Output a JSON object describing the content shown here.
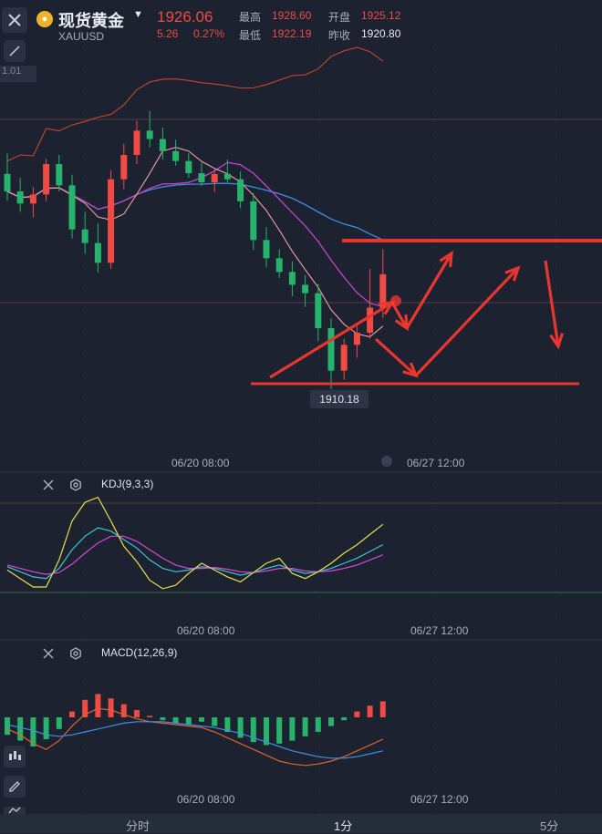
{
  "header": {
    "name": "现货黄金",
    "symbol": "XAUUSD",
    "price": "1926.06",
    "change": "5.26",
    "change_pct": "0.27%",
    "stats": [
      {
        "label": "最高",
        "value": "1928.60"
      },
      {
        "label": "开盘",
        "value": "1925.12"
      },
      {
        "label": "最低",
        "value": "1922.19"
      },
      {
        "label": "昨收",
        "value": "1920.80"
      }
    ]
  },
  "main_chart": {
    "corner_label": "1.01",
    "low_label": "1910.18",
    "x_ticks": [
      "06/20 08:00",
      "06/27 12:00"
    ]
  },
  "kdj": {
    "title": "KDJ(9,3,3)",
    "x_ticks": [
      "06/20 08:00",
      "06/27 12:00"
    ]
  },
  "macd": {
    "title": "MACD(12,26,9)",
    "x_ticks": [
      "06/20 08:00",
      "06/27 12:00"
    ]
  },
  "tabs": [
    "分时",
    "1分",
    "5分"
  ],
  "colors": {
    "up": "#f04a44",
    "down": "#26b36b",
    "ma_fast": "#f1a0a0",
    "ma_mid": "#c842cf",
    "ma_slow": "#3f8fe6",
    "boll_upper": "#c8452e",
    "k": "#3cc6d8",
    "d": "#d64ad8",
    "j": "#e8e04a"
  },
  "chart_data": [
    {
      "type": "candlestick",
      "title": "",
      "price_range": [
        1905,
        1950
      ],
      "annotation_low": 1910.18,
      "candles": [
        {
          "o": 1938.5,
          "h": 1941.2,
          "l": 1935.0,
          "c": 1936.2
        },
        {
          "o": 1936.2,
          "h": 1938.0,
          "l": 1933.5,
          "c": 1934.6
        },
        {
          "o": 1934.6,
          "h": 1936.8,
          "l": 1932.8,
          "c": 1935.8
        },
        {
          "o": 1935.8,
          "h": 1940.5,
          "l": 1934.9,
          "c": 1939.8
        },
        {
          "o": 1939.8,
          "h": 1941.0,
          "l": 1936.2,
          "c": 1937.0
        },
        {
          "o": 1937.0,
          "h": 1938.4,
          "l": 1930.0,
          "c": 1931.2
        },
        {
          "o": 1931.2,
          "h": 1933.5,
          "l": 1928.0,
          "c": 1929.4
        },
        {
          "o": 1929.4,
          "h": 1932.0,
          "l": 1925.5,
          "c": 1926.8
        },
        {
          "o": 1926.8,
          "h": 1939.0,
          "l": 1926.0,
          "c": 1937.8
        },
        {
          "o": 1937.8,
          "h": 1942.5,
          "l": 1936.5,
          "c": 1941.0
        },
        {
          "o": 1941.0,
          "h": 1945.5,
          "l": 1939.8,
          "c": 1944.2
        },
        {
          "o": 1944.2,
          "h": 1946.8,
          "l": 1942.0,
          "c": 1943.1
        },
        {
          "o": 1943.1,
          "h": 1944.6,
          "l": 1940.4,
          "c": 1941.5
        },
        {
          "o": 1941.5,
          "h": 1943.0,
          "l": 1939.6,
          "c": 1940.2
        },
        {
          "o": 1940.2,
          "h": 1941.2,
          "l": 1938.0,
          "c": 1938.6
        },
        {
          "o": 1938.6,
          "h": 1940.0,
          "l": 1936.9,
          "c": 1937.4
        },
        {
          "o": 1937.4,
          "h": 1939.1,
          "l": 1936.1,
          "c": 1938.5
        },
        {
          "o": 1938.5,
          "h": 1940.4,
          "l": 1937.4,
          "c": 1937.8
        },
        {
          "o": 1937.8,
          "h": 1938.8,
          "l": 1934.0,
          "c": 1934.9
        },
        {
          "o": 1934.9,
          "h": 1936.0,
          "l": 1928.5,
          "c": 1929.8
        },
        {
          "o": 1929.8,
          "h": 1931.5,
          "l": 1926.2,
          "c": 1927.4
        },
        {
          "o": 1927.4,
          "h": 1928.6,
          "l": 1924.8,
          "c": 1925.6
        },
        {
          "o": 1925.6,
          "h": 1927.0,
          "l": 1922.4,
          "c": 1923.9
        },
        {
          "o": 1923.9,
          "h": 1925.2,
          "l": 1921.0,
          "c": 1922.8
        },
        {
          "o": 1922.8,
          "h": 1924.0,
          "l": 1916.5,
          "c": 1918.2
        },
        {
          "o": 1918.2,
          "h": 1919.5,
          "l": 1910.18,
          "c": 1912.6
        },
        {
          "o": 1912.6,
          "h": 1916.8,
          "l": 1911.4,
          "c": 1916.0
        },
        {
          "o": 1916.0,
          "h": 1918.5,
          "l": 1914.3,
          "c": 1917.6
        },
        {
          "o": 1917.6,
          "h": 1926.0,
          "l": 1916.8,
          "c": 1920.9
        },
        {
          "o": 1920.9,
          "h": 1928.6,
          "l": 1919.5,
          "c": 1925.3
        }
      ]
    },
    {
      "type": "line",
      "title": "KDJ(9,3,3)",
      "series": [
        {
          "name": "K",
          "values": [
            42,
            36,
            30,
            28,
            40,
            62,
            78,
            88,
            84,
            74,
            64,
            50,
            40,
            36,
            38,
            42,
            40,
            36,
            32,
            35,
            40,
            44,
            38,
            34,
            36,
            40,
            46,
            52,
            60,
            68
          ]
        },
        {
          "name": "D",
          "values": [
            44,
            40,
            36,
            33,
            35,
            45,
            58,
            70,
            78,
            78,
            72,
            62,
            52,
            44,
            40,
            40,
            41,
            39,
            36,
            35,
            37,
            40,
            40,
            37,
            36,
            37,
            40,
            44,
            50,
            56
          ]
        },
        {
          "name": "J",
          "values": [
            38,
            28,
            18,
            18,
            50,
            96,
            118,
            124,
            96,
            66,
            48,
            26,
            16,
            20,
            34,
            46,
            38,
            30,
            24,
            35,
            46,
            52,
            34,
            28,
            36,
            46,
            58,
            68,
            80,
            92
          ]
        }
      ]
    },
    {
      "type": "bar",
      "title": "MACD(12,26,9)",
      "series": [
        {
          "name": "MACD",
          "values": [
            -1.2,
            -1.6,
            -2.0,
            -1.5,
            -0.8,
            0.4,
            1.2,
            1.6,
            1.3,
            0.9,
            0.5,
            0.1,
            -0.2,
            -0.4,
            -0.5,
            -0.3,
            -0.6,
            -1.0,
            -1.4,
            -1.7,
            -1.9,
            -1.8,
            -1.6,
            -1.3,
            -1.0,
            -0.6,
            -0.2,
            0.4,
            0.8,
            1.1
          ]
        },
        {
          "name": "DIF",
          "values": [
            -0.8,
            -1.2,
            -1.8,
            -2.2,
            -1.6,
            -0.6,
            0.2,
            0.6,
            0.5,
            0.2,
            -0.1,
            -0.3,
            -0.4,
            -0.5,
            -0.6,
            -0.7,
            -1.0,
            -1.4,
            -1.8,
            -2.2,
            -2.6,
            -3.0,
            -3.2,
            -3.3,
            -3.2,
            -3.0,
            -2.7,
            -2.3,
            -1.9,
            -1.5
          ]
        },
        {
          "name": "DEA",
          "values": [
            -0.5,
            -0.7,
            -0.9,
            -1.2,
            -1.3,
            -1.2,
            -1.0,
            -0.8,
            -0.6,
            -0.4,
            -0.3,
            -0.3,
            -0.3,
            -0.4,
            -0.5,
            -0.6,
            -0.7,
            -0.9,
            -1.1,
            -1.4,
            -1.7,
            -2.0,
            -2.3,
            -2.5,
            -2.7,
            -2.8,
            -2.8,
            -2.7,
            -2.5,
            -2.3
          ]
        }
      ]
    }
  ]
}
